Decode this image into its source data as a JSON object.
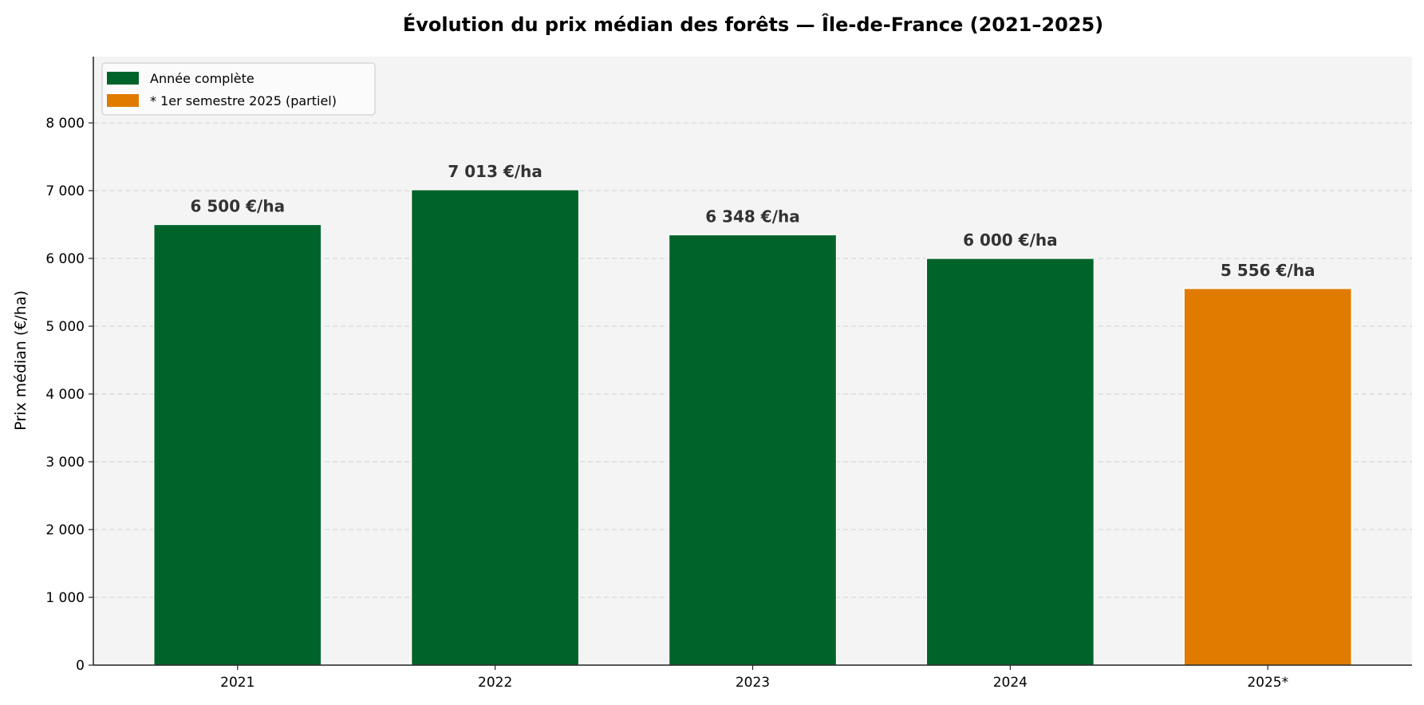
{
  "chart_data": {
    "type": "bar",
    "title": "Évolution du prix médian des forêts — Île-de-France (2021–2025)",
    "xlabel": "",
    "ylabel": "Prix médian (€/ha)",
    "categories": [
      "2021",
      "2022",
      "2023",
      "2024",
      "2025*"
    ],
    "values": [
      6500,
      7013,
      6348,
      6000,
      5556
    ],
    "data_labels": [
      "6 500 €/ha",
      "7 013 €/ha",
      "6 348 €/ha",
      "6 000 €/ha",
      "5 556 €/ha"
    ],
    "bar_colors": [
      "#00642a",
      "#00642a",
      "#00642a",
      "#00642a",
      "#e07b00"
    ],
    "ylim": [
      0,
      8977
    ],
    "yticks": [
      0,
      1000,
      2000,
      3000,
      4000,
      5000,
      6000,
      7000,
      8000
    ],
    "ytick_labels": [
      "0",
      "1 000",
      "2 000",
      "3 000",
      "4 000",
      "5 000",
      "6 000",
      "7 000",
      "8 000"
    ],
    "grid": "y, dashed",
    "background": "#f4f4f4",
    "legend": {
      "placement": "top-left",
      "entries": [
        {
          "label": "Année complète",
          "color": "#00642a"
        },
        {
          "label": "* 1er semestre 2025 (partiel)",
          "color": "#e07b00"
        }
      ]
    }
  }
}
